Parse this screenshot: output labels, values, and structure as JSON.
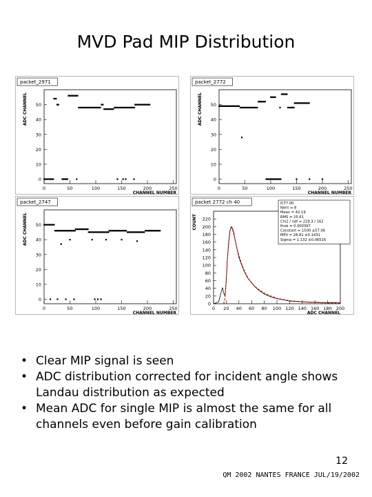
{
  "slide": {
    "title": "MVD Pad MIP Distribution",
    "bullets": [
      "Clear MIP signal is seen",
      "ADC distribution corrected for incident angle shows Landau distribution as expected",
      "Mean ADC for single MIP is almost the same for all channels even before gain calibration"
    ],
    "bullet_marker": "•",
    "page_number": "12",
    "footer": "QM 2002 NANTES FRANCE JUL/19/2002"
  },
  "chart_data": [
    {
      "type": "scatter",
      "title": "packet_2971",
      "xlabel": "CHANNEL NUMBER",
      "ylabel": "ADC CHANNEL",
      "xlim": [
        0,
        256
      ],
      "ylim": [
        -3,
        60
      ],
      "xticks": [
        0,
        50,
        100,
        150,
        200,
        250
      ],
      "xtick_labels": [
        "0",
        "50",
        "100",
        "150",
        "200",
        "250"
      ],
      "yticks": [
        0,
        10,
        20,
        30,
        40,
        50
      ],
      "ytick_labels": [
        "0",
        "10",
        "20",
        "30",
        "40",
        "50"
      ],
      "segments": [
        {
          "x0": 0,
          "x1": 18,
          "y": 0
        },
        {
          "x0": 19,
          "x1": 24,
          "y": 54
        },
        {
          "x0": 25,
          "x1": 29,
          "y": 50
        },
        {
          "x0": 35,
          "x1": 46,
          "y": 0
        },
        {
          "x0": 47,
          "x1": 66,
          "y": 56
        },
        {
          "x0": 67,
          "x1": 110,
          "y": 48
        },
        {
          "x0": 111,
          "x1": 115,
          "y": 50
        },
        {
          "x0": 116,
          "x1": 135,
          "y": 47
        },
        {
          "x0": 136,
          "x1": 175,
          "y": 48
        },
        {
          "x0": 176,
          "x1": 205,
          "y": 50
        }
      ],
      "isolated_points": [
        {
          "x": 63,
          "y": 0
        },
        {
          "x": 142,
          "y": 0
        },
        {
          "x": 153,
          "y": 0
        },
        {
          "x": 174,
          "y": 0
        },
        {
          "x": 158,
          "y": 0
        }
      ]
    },
    {
      "type": "scatter",
      "title": "packet_2772",
      "xlabel": "CHANNEL NUMBER",
      "ylabel": "ADC CHANNEL",
      "xlim": [
        0,
        256
      ],
      "ylim": [
        -3,
        60
      ],
      "xticks": [
        0,
        50,
        100,
        150,
        200,
        250
      ],
      "xtick_labels": [
        "0",
        "50",
        "100",
        "150",
        "200",
        "250"
      ],
      "yticks": [
        0,
        10,
        20,
        30,
        40,
        50
      ],
      "ytick_labels": [
        "0",
        "10",
        "20",
        "30",
        "40",
        "50"
      ],
      "segments": [
        {
          "x0": 0,
          "x1": 40,
          "y": 49
        },
        {
          "x0": 41,
          "x1": 75,
          "y": 48
        },
        {
          "x0": 76,
          "x1": 90,
          "y": 52
        },
        {
          "x0": 91,
          "x1": 120,
          "y": 0
        },
        {
          "x0": 100,
          "x1": 109,
          "y": 55
        },
        {
          "x0": 121,
          "x1": 132,
          "y": 57
        },
        {
          "x0": 133,
          "x1": 145,
          "y": 48
        },
        {
          "x0": 146,
          "x1": 175,
          "y": 51
        }
      ],
      "isolated_points": [
        {
          "x": 44,
          "y": 28
        },
        {
          "x": 118,
          "y": 48
        },
        {
          "x": 150,
          "y": 0
        },
        {
          "x": 175,
          "y": 0
        },
        {
          "x": 200,
          "y": 0
        }
      ]
    },
    {
      "type": "scatter",
      "title": "packet_2747",
      "xlabel": "CHANNEL NUMBER",
      "ylabel": "ADC CHANNEL",
      "xlim": [
        0,
        256
      ],
      "ylim": [
        -3,
        60
      ],
      "xticks": [
        0,
        50,
        100,
        150,
        200,
        250
      ],
      "xtick_labels": [
        "0",
        "50",
        "100",
        "150",
        "200",
        "250"
      ],
      "yticks": [
        0,
        10,
        20,
        30,
        40,
        50
      ],
      "ytick_labels": [
        "0",
        "10",
        "20",
        "30",
        "40",
        "50"
      ],
      "segments": [
        {
          "x0": 0,
          "x1": 20,
          "y": 50
        },
        {
          "x0": 21,
          "x1": 60,
          "y": 46
        },
        {
          "x0": 61,
          "x1": 85,
          "y": 47
        },
        {
          "x0": 86,
          "x1": 125,
          "y": 45
        },
        {
          "x0": 126,
          "x1": 160,
          "y": 46
        },
        {
          "x0": 161,
          "x1": 195,
          "y": 45
        },
        {
          "x0": 196,
          "x1": 225,
          "y": 46
        }
      ],
      "isolated_points": [
        {
          "x": 33,
          "y": 37
        },
        {
          "x": 50,
          "y": 40
        },
        {
          "x": 93,
          "y": 40
        },
        {
          "x": 120,
          "y": 40
        },
        {
          "x": 150,
          "y": 40
        },
        {
          "x": 180,
          "y": 39
        },
        {
          "x": 12,
          "y": 0
        },
        {
          "x": 26,
          "y": 0
        },
        {
          "x": 42,
          "y": 0
        },
        {
          "x": 58,
          "y": 0
        },
        {
          "x": 98,
          "y": 0
        },
        {
          "x": 104,
          "y": 0
        },
        {
          "x": 110,
          "y": 0
        }
      ]
    },
    {
      "type": "line",
      "title": "packet 2772 ch 40",
      "xlabel": "ADC CHANNEL",
      "ylabel": "COUNT",
      "xlim": [
        0,
        200
      ],
      "ylim": [
        0,
        240
      ],
      "xticks": [
        0,
        20,
        40,
        60,
        80,
        100,
        120,
        140,
        160,
        180,
        200
      ],
      "xtick_labels": [
        "0",
        "20",
        "40",
        "60",
        "80",
        "100",
        "120",
        "140",
        "160",
        "180",
        "200"
      ],
      "yticks": [
        0,
        20,
        40,
        60,
        80,
        100,
        120,
        140,
        160,
        180,
        200,
        220
      ],
      "ytick_labels": [
        "0",
        "20",
        "40",
        "60",
        "80",
        "100",
        "120",
        "140",
        "160",
        "180",
        "200",
        "220"
      ],
      "stats_box": {
        "title": "ICT? 00",
        "rows": [
          "Nent = 8",
          "Mean = 42.19",
          "RMS = 25.61",
          "Chi2 / ndf = 229.3 / 162",
          "Prob = 0.000367",
          "Constant = 1500 ±57.06",
          "MPV = 28.81 ±0.1431",
          "Sigma = 1.132 ±0.06516"
        ]
      },
      "series": [
        {
          "name": "histogram",
          "x": [
            0,
            4,
            8,
            12,
            14,
            16,
            18,
            20,
            22,
            24,
            26,
            28,
            30,
            32,
            34,
            36,
            38,
            40,
            44,
            48,
            52,
            56,
            60,
            64,
            68,
            72,
            76,
            80,
            90,
            100,
            110,
            120,
            130,
            140,
            150,
            160,
            170,
            180,
            190,
            200
          ],
          "y": [
            0,
            2,
            5,
            30,
            42,
            28,
            20,
            60,
            120,
            160,
            190,
            200,
            195,
            185,
            165,
            150,
            135,
            120,
            102,
            85,
            72,
            62,
            55,
            46,
            40,
            34,
            30,
            25,
            18,
            13,
            10,
            7,
            6,
            5,
            4,
            4,
            3,
            3,
            3,
            2
          ]
        },
        {
          "name": "fit",
          "x": [
            16,
            18,
            20,
            22,
            24,
            26,
            28,
            30,
            32,
            34,
            36,
            40,
            44,
            48,
            52,
            56,
            60,
            66,
            72,
            80,
            90,
            100,
            120,
            140,
            160,
            180,
            200
          ],
          "y": [
            0,
            15,
            60,
            120,
            165,
            190,
            198,
            192,
            180,
            165,
            150,
            125,
            105,
            88,
            74,
            63,
            54,
            44,
            36,
            28,
            20,
            14,
            8,
            5,
            3,
            2,
            1
          ]
        }
      ]
    }
  ]
}
